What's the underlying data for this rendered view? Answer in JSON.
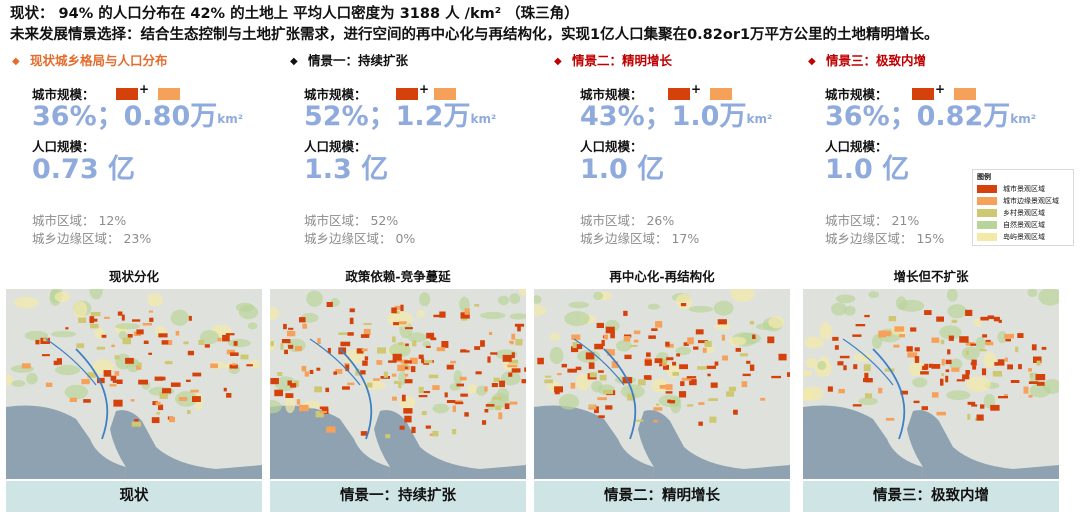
{
  "header": {
    "line1": "现状：  94% 的人口分布在 42% 的土地上    平均人口密度为 3188 人 /km²  （珠三角）",
    "line2": "未来发展情景选择：结合生态控制与土地扩张需求，进行空间的再中心化与再结构化，实现1亿人口集聚在0.82or1万平方公里的土地精明增长。"
  },
  "colors": {
    "urban": "#d4410a",
    "fringe": "#f6a15a",
    "rural": "#cfc872",
    "nature": "#b9d49a",
    "island": "#f3eaa8",
    "value_blue": "#8faadc",
    "caption_bg": "#cfe4e4",
    "sea": "#8ea2b2"
  },
  "panels": [
    {
      "title": "现状城乡格局与人口分布",
      "title_color": "#e36c2d",
      "bullet_color": "#e36c2d",
      "bullet": "◆",
      "city_label": "城市规模：",
      "plus": "+",
      "city_value": "36%；0.80万",
      "unit": "km²",
      "pop_label": "人口规模：",
      "pop_value": "0.73 亿",
      "urban_area": "城市区域：  12%",
      "fringe_area": "城乡边缘区域：  23%",
      "map_title": "现状分化",
      "caption": "现状",
      "density": 0.42
    },
    {
      "title": "情景一：持续扩张",
      "title_color": "#111111",
      "bullet_color": "#111111",
      "bullet": "◆",
      "city_label": "城市规模：",
      "plus": "+",
      "city_value": "52%；1.2万",
      "unit": "km²",
      "pop_label": "人口规模：",
      "pop_value": "1.3 亿",
      "urban_area": "城市区域：  52%",
      "fringe_area": "城乡边缘区域：  0%",
      "map_title": "政策依赖-竞争蔓延",
      "caption": "情景一：持续扩张",
      "density": 0.78
    },
    {
      "title": "情景二：精明增长",
      "title_color": "#c00000",
      "bullet_color": "#c00000",
      "bullet": "◆",
      "city_label": "城市规模：",
      "plus": "+",
      "city_value": "43%；1.0万",
      "unit": "km²",
      "pop_label": "人口规模：",
      "pop_value": "1.0 亿",
      "urban_area": "城市区域：  26%",
      "fringe_area": "城乡边缘区域：  17%",
      "map_title": "再中心化-再结构化",
      "caption": "情景二：精明增长",
      "density": 0.55
    },
    {
      "title": "情景三：极致内增",
      "title_color": "#c00000",
      "bullet_color": "#c00000",
      "bullet": "◆",
      "city_label": "城市规模：",
      "plus": "+",
      "city_value": "36%；0.82万",
      "unit": "km²",
      "pop_label": "人口规模：",
      "pop_value": "1.0 亿",
      "urban_area": "城市区域：  21%",
      "fringe_area": "城乡边缘区域：  15%",
      "map_title": "增长但不扩张",
      "caption": "情景三：极致内增",
      "density": 0.48
    }
  ],
  "legend": {
    "title": "图例",
    "items": [
      {
        "label": "城市景观区域",
        "color": "#d4410a"
      },
      {
        "label": "城市边缘景观区域",
        "color": "#f6a15a"
      },
      {
        "label": "乡村景观区域",
        "color": "#cfc872"
      },
      {
        "label": "自然景观区域",
        "color": "#b9d49a"
      },
      {
        "label": "岛屿景观区域",
        "color": "#f3eaa8"
      }
    ]
  }
}
